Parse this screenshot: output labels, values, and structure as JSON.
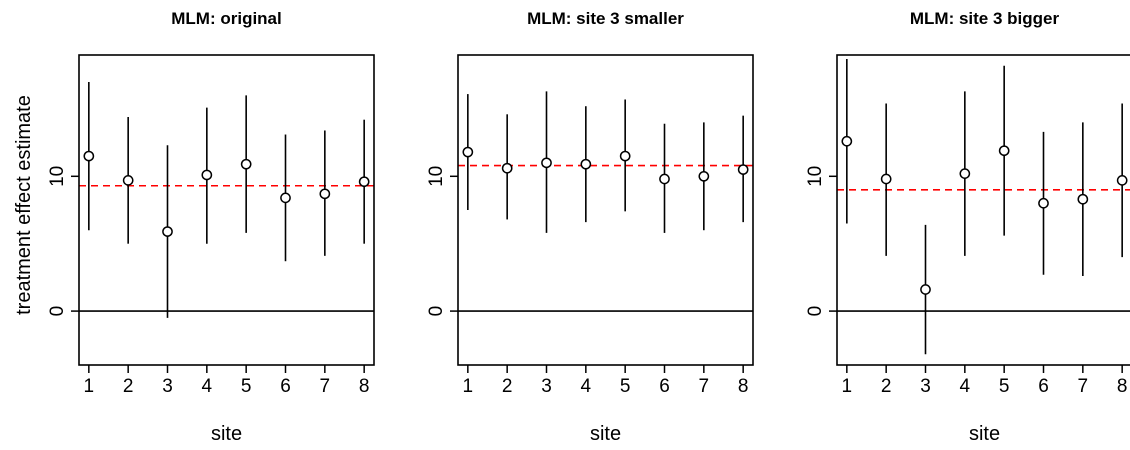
{
  "chart_data": {
    "type": "scatter",
    "ylabel": "treatment effect estimate",
    "xlabel": "site",
    "xlim": [
      0.75,
      8.25
    ],
    "ylim": [
      -4.0,
      19.0
    ],
    "x_ticks": [
      1,
      2,
      3,
      4,
      5,
      6,
      7,
      8
    ],
    "y_ticks": [
      0,
      10
    ],
    "zero_line": {
      "value": 0,
      "color": "#000000",
      "style": "solid"
    },
    "pooled_line": {
      "color": "#ff0000",
      "style": "dashed"
    },
    "marker": "open-circle",
    "interval": "vertical error bar",
    "panels": [
      {
        "title": "MLM: original",
        "pooled_estimate": 9.3,
        "points": [
          {
            "site": 1,
            "estimate": 11.5,
            "lower": 6.0,
            "upper": 17.0
          },
          {
            "site": 2,
            "estimate": 9.7,
            "lower": 5.0,
            "upper": 14.4
          },
          {
            "site": 3,
            "estimate": 5.9,
            "lower": -0.5,
            "upper": 12.3
          },
          {
            "site": 4,
            "estimate": 10.1,
            "lower": 5.0,
            "upper": 15.1
          },
          {
            "site": 5,
            "estimate": 10.9,
            "lower": 5.8,
            "upper": 16.0
          },
          {
            "site": 6,
            "estimate": 8.4,
            "lower": 3.7,
            "upper": 13.1
          },
          {
            "site": 7,
            "estimate": 8.7,
            "lower": 4.1,
            "upper": 13.4
          },
          {
            "site": 8,
            "estimate": 9.6,
            "lower": 5.0,
            "upper": 14.2
          }
        ]
      },
      {
        "title": "MLM: site 3 smaller",
        "pooled_estimate": 10.8,
        "points": [
          {
            "site": 1,
            "estimate": 11.8,
            "lower": 7.5,
            "upper": 16.1
          },
          {
            "site": 2,
            "estimate": 10.6,
            "lower": 6.8,
            "upper": 14.6
          },
          {
            "site": 3,
            "estimate": 11.0,
            "lower": 5.8,
            "upper": 16.3
          },
          {
            "site": 4,
            "estimate": 10.9,
            "lower": 6.6,
            "upper": 15.2
          },
          {
            "site": 5,
            "estimate": 11.5,
            "lower": 7.4,
            "upper": 15.7
          },
          {
            "site": 6,
            "estimate": 9.8,
            "lower": 5.8,
            "upper": 13.9
          },
          {
            "site": 7,
            "estimate": 10.0,
            "lower": 6.0,
            "upper": 14.0
          },
          {
            "site": 8,
            "estimate": 10.5,
            "lower": 6.6,
            "upper": 14.5
          }
        ]
      },
      {
        "title": "MLM: site 3 bigger",
        "pooled_estimate": 9.0,
        "points": [
          {
            "site": 1,
            "estimate": 12.6,
            "lower": 6.5,
            "upper": 18.7
          },
          {
            "site": 2,
            "estimate": 9.8,
            "lower": 4.1,
            "upper": 15.4
          },
          {
            "site": 3,
            "estimate": 1.6,
            "lower": -3.2,
            "upper": 6.4
          },
          {
            "site": 4,
            "estimate": 10.2,
            "lower": 4.1,
            "upper": 16.3
          },
          {
            "site": 5,
            "estimate": 11.9,
            "lower": 5.6,
            "upper": 18.2
          },
          {
            "site": 6,
            "estimate": 8.0,
            "lower": 2.7,
            "upper": 13.3
          },
          {
            "site": 7,
            "estimate": 8.3,
            "lower": 2.6,
            "upper": 14.0
          },
          {
            "site": 8,
            "estimate": 9.7,
            "lower": 4.0,
            "upper": 15.4
          }
        ]
      }
    ]
  }
}
